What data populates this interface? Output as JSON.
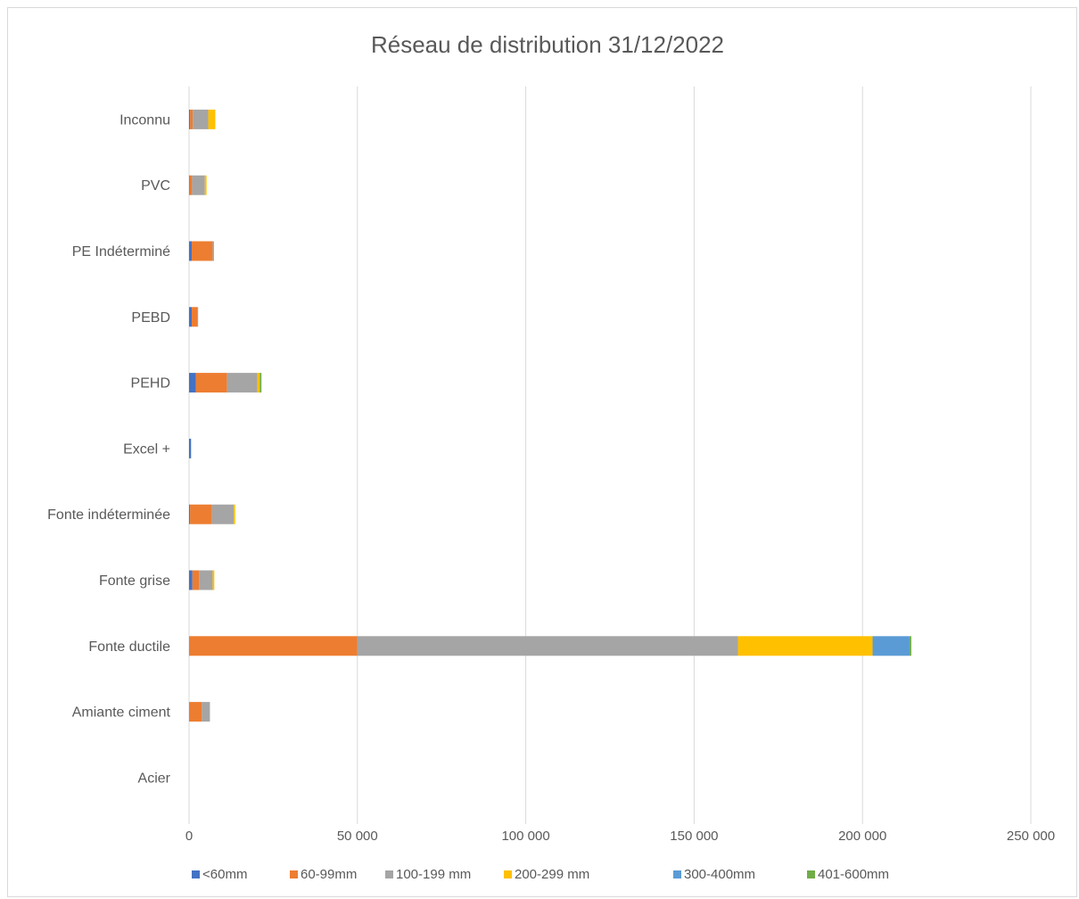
{
  "chart_data": {
    "type": "bar",
    "orientation": "horizontal",
    "stacked": true,
    "title": "Réseau de distribution 31/12/2022",
    "xlabel": "",
    "ylabel": "",
    "xlim": [
      0,
      250000
    ],
    "x_ticks": [
      "0",
      "50 000",
      "100 000",
      "150 000",
      "200 000",
      "250 000"
    ],
    "grid": "vertical",
    "legend_position": "bottom",
    "categories": [
      "Inconnu",
      "PVC",
      "PE Indéterminé",
      "PEBD",
      "PEHD",
      "Excel +",
      "Fonte indéterminée",
      "Fonte grise",
      "Fonte ductile",
      "Amiante ciment",
      "Acier"
    ],
    "series": [
      {
        "name": "<60mm",
        "color": "#4472c4",
        "values": [
          300,
          200,
          800,
          800,
          2000,
          600,
          300,
          1000,
          0,
          0,
          0
        ]
      },
      {
        "name": "60-99mm",
        "color": "#ed7d31",
        "values": [
          800,
          700,
          6200,
          1700,
          9300,
          0,
          6500,
          2000,
          50000,
          3800,
          0
        ]
      },
      {
        "name": "100-199 mm",
        "color": "#a5a5a5",
        "values": [
          4600,
          3800,
          400,
          200,
          9000,
          0,
          6500,
          4000,
          113000,
          2400,
          0
        ]
      },
      {
        "name": "200-299 mm",
        "color": "#ffc000",
        "values": [
          2100,
          500,
          0,
          0,
          700,
          0,
          400,
          500,
          40000,
          0,
          0
        ]
      },
      {
        "name": "300-400mm",
        "color": "#5b9bd5",
        "values": [
          0,
          0,
          0,
          0,
          0,
          0,
          0,
          0,
          11000,
          0,
          0
        ]
      },
      {
        "name": "401-600mm",
        "color": "#70ad47",
        "values": [
          0,
          0,
          0,
          0,
          500,
          0,
          0,
          0,
          500,
          0,
          0
        ]
      }
    ]
  }
}
